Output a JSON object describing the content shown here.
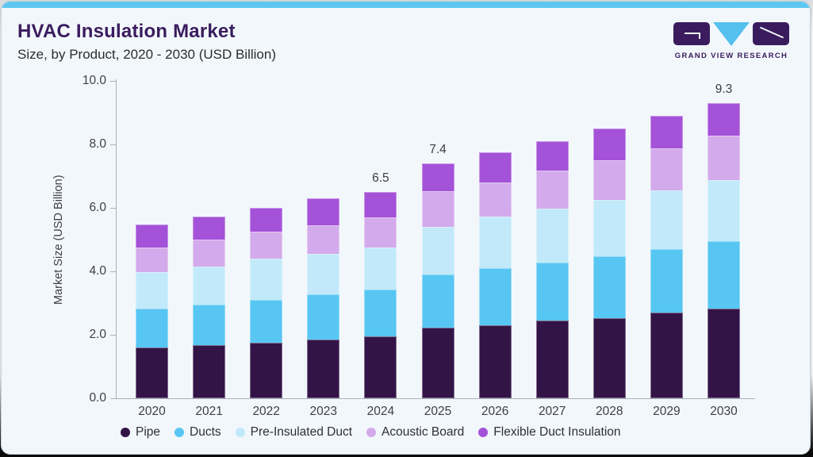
{
  "header": {
    "title": "HVAC Insulation Market",
    "subtitle": "Size, by Product, 2020 - 2030 (USD Billion)"
  },
  "logo": {
    "wordmark": "GRAND VIEW RESEARCH"
  },
  "colors": {
    "accent_strip": "#5ec7f1",
    "card_background": "#f2f7fb",
    "title_text": "#3a1c5e",
    "axis_text": "#3f3f46",
    "axis_spine": "#a9b2ba"
  },
  "chart_data": {
    "type": "bar",
    "stacked": true,
    "title": "HVAC Insulation Market Size, by Product, 2020 - 2030 (USD Billion)",
    "xlabel": "",
    "ylabel": "Market Size (USD Billion)",
    "ylim": [
      0,
      10
    ],
    "yticks": [
      0,
      2,
      4,
      6,
      8,
      10
    ],
    "ytick_labels": [
      "0.0",
      "2.0",
      "4.0",
      "6.0",
      "8.0",
      "10.0"
    ],
    "grid": false,
    "legend_position": "bottom",
    "categories": [
      "2020",
      "2021",
      "2022",
      "2023",
      "2024",
      "2025",
      "2026",
      "2027",
      "2028",
      "2029",
      "2030"
    ],
    "series": [
      {
        "name": "Pipe",
        "color": "#331447",
        "values": [
          1.6,
          1.67,
          1.75,
          1.86,
          1.95,
          2.23,
          2.31,
          2.45,
          2.53,
          2.71,
          2.83
        ]
      },
      {
        "name": "Ducts",
        "color": "#57c6f2",
        "values": [
          1.22,
          1.29,
          1.36,
          1.42,
          1.48,
          1.68,
          1.78,
          1.83,
          1.95,
          1.99,
          2.12
        ]
      },
      {
        "name": "Pre-Insulated Duct",
        "color": "#c1e9f9",
        "values": [
          1.15,
          1.2,
          1.28,
          1.28,
          1.33,
          1.5,
          1.64,
          1.7,
          1.77,
          1.85,
          1.92
        ]
      },
      {
        "name": "Acoustic Board",
        "color": "#d3aaeb",
        "values": [
          0.78,
          0.84,
          0.85,
          0.9,
          0.94,
          1.11,
          1.08,
          1.19,
          1.25,
          1.32,
          1.41
        ]
      },
      {
        "name": "Flexible Duct Insulation",
        "color": "#a452d8",
        "values": [
          0.72,
          0.73,
          0.75,
          0.83,
          0.8,
          0.88,
          0.93,
          0.94,
          1.0,
          1.04,
          1.02
        ]
      }
    ],
    "bar_labels": [
      "",
      "",
      "",
      "",
      "6.5",
      "7.4",
      "",
      "",
      "",
      "",
      "9.3"
    ]
  }
}
